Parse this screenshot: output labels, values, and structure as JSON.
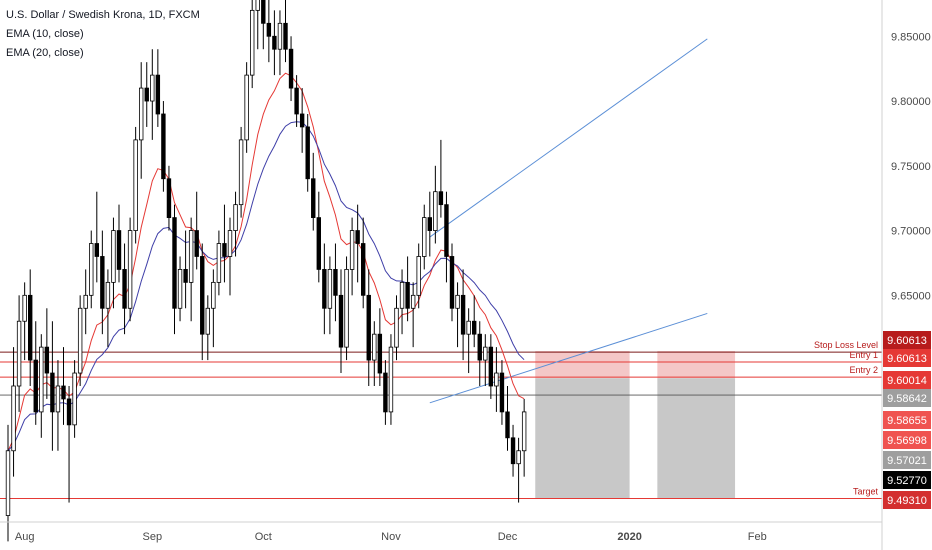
{
  "legend": {
    "title": "U.S. Dollar / Swedish Krona, 1D, FXCM",
    "ema10": "EMA (10, close)",
    "ema20": "EMA (20, close)"
  },
  "colors": {
    "up": "#ffffff",
    "down": "#000000",
    "ema10": "#e53935",
    "ema20": "#3f3fa8",
    "channel": "#5b8fd6",
    "red_line": "#e53935",
    "zone_red": "#f4c7c7",
    "zone_grey": "#c8c8c8",
    "axis_text": "#4a4a4a"
  },
  "chart_data": {
    "type": "candlestick",
    "symbol": "U.S. Dollar / Swedish Krona, 1D, FXCM",
    "ylim": [
      9.475,
      9.878
    ],
    "y_ticks": [
      9.65,
      9.7,
      9.75,
      9.8,
      9.85
    ],
    "y_tick_labels": [
      "9.65000",
      "9.70000",
      "9.75000",
      "9.80000",
      "9.85000"
    ],
    "x_ticks": [
      {
        "label": "Aug",
        "bar": 3
      },
      {
        "label": "Sep",
        "bar": 26
      },
      {
        "label": "Oct",
        "bar": 46
      },
      {
        "label": "Nov",
        "bar": 69
      },
      {
        "label": "Dec",
        "bar": 90
      },
      {
        "label": "2020",
        "bar": 112
      },
      {
        "label": "Feb",
        "bar": 135
      }
    ],
    "candles": [
      [
        9.48,
        9.55,
        9.46,
        9.53
      ],
      [
        9.53,
        9.61,
        9.51,
        9.58
      ],
      [
        9.58,
        9.65,
        9.56,
        9.63
      ],
      [
        9.63,
        9.66,
        9.6,
        9.65
      ],
      [
        9.65,
        9.67,
        9.58,
        9.6
      ],
      [
        9.6,
        9.63,
        9.55,
        9.56
      ],
      [
        9.56,
        9.62,
        9.54,
        9.61
      ],
      [
        9.61,
        9.64,
        9.57,
        9.59
      ],
      [
        9.59,
        9.63,
        9.53,
        9.56
      ],
      [
        9.56,
        9.6,
        9.53,
        9.58
      ],
      [
        9.58,
        9.61,
        9.55,
        9.57
      ],
      [
        9.57,
        9.58,
        9.49,
        9.55
      ],
      [
        9.55,
        9.6,
        9.54,
        9.59
      ],
      [
        9.59,
        9.65,
        9.58,
        9.64
      ],
      [
        9.64,
        9.67,
        9.62,
        9.65
      ],
      [
        9.65,
        9.7,
        9.64,
        9.69
      ],
      [
        9.69,
        9.73,
        9.66,
        9.68
      ],
      [
        9.68,
        9.7,
        9.62,
        9.64
      ],
      [
        9.64,
        9.67,
        9.61,
        9.66
      ],
      [
        9.66,
        9.71,
        9.64,
        9.7
      ],
      [
        9.7,
        9.72,
        9.66,
        9.67
      ],
      [
        9.67,
        9.69,
        9.62,
        9.64
      ],
      [
        9.64,
        9.71,
        9.63,
        9.7
      ],
      [
        9.7,
        9.78,
        9.69,
        9.77
      ],
      [
        9.77,
        9.83,
        9.74,
        9.81
      ],
      [
        9.81,
        9.83,
        9.78,
        9.8
      ],
      [
        9.8,
        9.84,
        9.77,
        9.82
      ],
      [
        9.82,
        9.84,
        9.78,
        9.79
      ],
      [
        9.79,
        9.8,
        9.73,
        9.74
      ],
      [
        9.74,
        9.75,
        9.7,
        9.71
      ],
      [
        9.71,
        9.72,
        9.62,
        9.64
      ],
      [
        9.64,
        9.68,
        9.63,
        9.67
      ],
      [
        9.67,
        9.7,
        9.64,
        9.66
      ],
      [
        9.66,
        9.71,
        9.63,
        9.7
      ],
      [
        9.7,
        9.73,
        9.67,
        9.68
      ],
      [
        9.68,
        9.69,
        9.6,
        9.62
      ],
      [
        9.62,
        9.65,
        9.6,
        9.64
      ],
      [
        9.64,
        9.67,
        9.61,
        9.66
      ],
      [
        9.66,
        9.7,
        9.65,
        9.69
      ],
      [
        9.69,
        9.72,
        9.66,
        9.68
      ],
      [
        9.68,
        9.71,
        9.65,
        9.7
      ],
      [
        9.7,
        9.73,
        9.68,
        9.72
      ],
      [
        9.72,
        9.78,
        9.71,
        9.77
      ],
      [
        9.77,
        9.83,
        9.76,
        9.82
      ],
      [
        9.82,
        9.88,
        9.81,
        9.87
      ],
      [
        9.87,
        9.89,
        9.84,
        9.88
      ],
      [
        9.88,
        9.89,
        9.84,
        9.86
      ],
      [
        9.86,
        9.88,
        9.83,
        9.85
      ],
      [
        9.85,
        9.87,
        9.82,
        9.84
      ],
      [
        9.84,
        9.87,
        9.82,
        9.86
      ],
      [
        9.86,
        9.88,
        9.83,
        9.84
      ],
      [
        9.84,
        9.85,
        9.8,
        9.81
      ],
      [
        9.81,
        9.82,
        9.78,
        9.79
      ],
      [
        9.79,
        9.81,
        9.76,
        9.78
      ],
      [
        9.78,
        9.79,
        9.73,
        9.74
      ],
      [
        9.74,
        9.76,
        9.7,
        9.71
      ],
      [
        9.71,
        9.73,
        9.66,
        9.67
      ],
      [
        9.67,
        9.69,
        9.62,
        9.64
      ],
      [
        9.64,
        9.68,
        9.62,
        9.67
      ],
      [
        9.67,
        9.69,
        9.63,
        9.65
      ],
      [
        9.65,
        9.67,
        9.59,
        9.61
      ],
      [
        9.61,
        9.68,
        9.6,
        9.67
      ],
      [
        9.67,
        9.71,
        9.65,
        9.7
      ],
      [
        9.7,
        9.72,
        9.66,
        9.69
      ],
      [
        9.69,
        9.71,
        9.64,
        9.65
      ],
      [
        9.65,
        9.67,
        9.58,
        9.6
      ],
      [
        9.6,
        9.63,
        9.58,
        9.62
      ],
      [
        9.62,
        9.64,
        9.58,
        9.59
      ],
      [
        9.59,
        9.6,
        9.55,
        9.56
      ],
      [
        9.56,
        9.62,
        9.55,
        9.61
      ],
      [
        9.61,
        9.65,
        9.6,
        9.64
      ],
      [
        9.64,
        9.67,
        9.62,
        9.66
      ],
      [
        9.66,
        9.68,
        9.63,
        9.64
      ],
      [
        9.64,
        9.66,
        9.61,
        9.65
      ],
      [
        9.65,
        9.69,
        9.64,
        9.68
      ],
      [
        9.68,
        9.72,
        9.67,
        9.71
      ],
      [
        9.71,
        9.73,
        9.68,
        9.7
      ],
      [
        9.7,
        9.75,
        9.69,
        9.73
      ],
      [
        9.73,
        9.77,
        9.71,
        9.72
      ],
      [
        9.72,
        9.73,
        9.66,
        9.68
      ],
      [
        9.68,
        9.69,
        9.63,
        9.64
      ],
      [
        9.64,
        9.66,
        9.61,
        9.65
      ],
      [
        9.65,
        9.67,
        9.6,
        9.62
      ],
      [
        9.62,
        9.64,
        9.59,
        9.63
      ],
      [
        9.63,
        9.65,
        9.61,
        9.62
      ],
      [
        9.62,
        9.63,
        9.58,
        9.6
      ],
      [
        9.6,
        9.62,
        9.58,
        9.61
      ],
      [
        9.61,
        9.62,
        9.57,
        9.58
      ],
      [
        9.58,
        9.61,
        9.56,
        9.59
      ],
      [
        9.59,
        9.6,
        9.55,
        9.56
      ],
      [
        9.56,
        9.58,
        9.53,
        9.54
      ],
      [
        9.54,
        9.55,
        9.51,
        9.52
      ],
      [
        9.52,
        9.54,
        9.49,
        9.53
      ],
      [
        9.53,
        9.57,
        9.51,
        9.56
      ]
    ],
    "ema10_label": "EMA (10, close)",
    "ema20_label": "EMA (20, close)",
    "trendlines": [
      {
        "from": [
          76,
          9.695
        ],
        "to": [
          126,
          9.848
        ]
      },
      {
        "from": [
          76,
          9.567
        ],
        "to": [
          126,
          9.636
        ]
      }
    ],
    "levels": [
      {
        "name": "Stop Loss Level",
        "value": 9.60613,
        "label": "9.60613",
        "badge": "#b71c1c"
      },
      {
        "name": "Entry 1",
        "value": 9.60613,
        "label": "9.60613",
        "badge": "#e53935"
      },
      {
        "name": "Entry 2",
        "value": 9.60014,
        "label": "9.60014",
        "badge": "#e53935"
      },
      {
        "name": "Target",
        "value": 9.4931,
        "label": "9.49310",
        "badge": "#e53935"
      }
    ],
    "price_badges": [
      {
        "value": 9.58642,
        "label": "9.58642",
        "color": "#9e9e9e"
      },
      {
        "value": 9.58655,
        "label": "9.58655",
        "color": "#ef5350"
      },
      {
        "value": 9.56998,
        "label": "9.56998",
        "color": "#ef5350"
      },
      {
        "value": 9.57021,
        "label": "9.57021",
        "color": "#9e9e9e"
      },
      {
        "value": 9.5277,
        "label": "9.52770",
        "color": "#000000"
      },
      {
        "value": 9.4931,
        "label": "9.49310",
        "color": "#d32f2f"
      }
    ],
    "current_price_line": 9.573,
    "zones": [
      {
        "x_from": 95,
        "x_to": 112,
        "top": 9.607,
        "mid": 9.586,
        "bottom": 9.493
      },
      {
        "x_from": 117,
        "x_to": 131,
        "top": 9.607,
        "mid": 9.586,
        "bottom": 9.493
      }
    ]
  }
}
